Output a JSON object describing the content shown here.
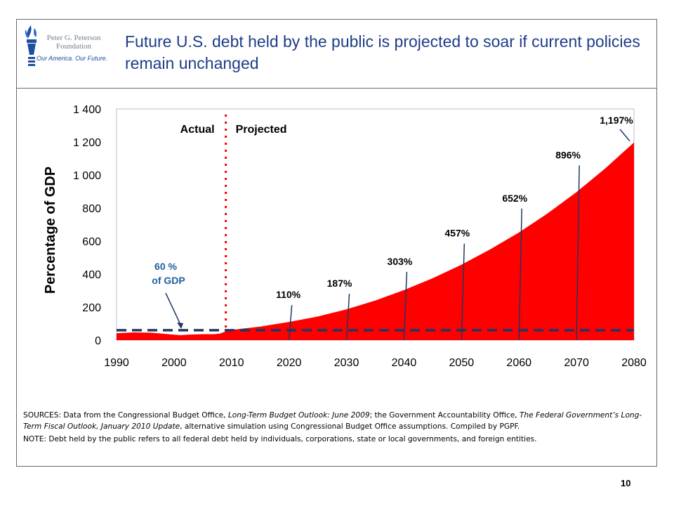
{
  "slide": {
    "title": "Future U.S. debt held by the public is projected to soar if current policies remain unchanged",
    "logo": {
      "name_line1": "Peter G. Peterson",
      "name_line2": "Foundation",
      "tagline": "Our America. Our Future."
    },
    "sources": {
      "line1_a": "SOURCES: Data from the Congressional Budget Office, ",
      "line1_b": "Long-Term Budget Outlook: June 2009",
      "line1_c": "; the Government Accountability Office, ",
      "line1_d": "The Federal Government’s Long-Term Fiscal Outlook, January 2010 Update",
      "line1_e": ", alternative simulation using Congressional Budget Office assumptions. Compiled by PGPF.",
      "note": "NOTE: Debt held by the public refers to all federal debt held by individuals, corporations, state or local governments, and foreign entities."
    },
    "page_number": "10"
  },
  "chart_data": {
    "type": "area",
    "ylabel": "Percentage of GDP",
    "xlim": [
      1990,
      2080
    ],
    "ylim": [
      0,
      1400
    ],
    "x_ticks": [
      "1990",
      "2000",
      "2010",
      "2020",
      "2030",
      "2040",
      "2050",
      "2060",
      "2070",
      "2080"
    ],
    "y_ticks": [
      "0",
      "200",
      "400",
      "600",
      "800",
      "1 000",
      "1 200",
      "1 400"
    ],
    "series": [
      {
        "x": [
          1990,
          1993,
          1996,
          1998,
          2000,
          2001,
          2003,
          2005,
          2007,
          2008,
          2009,
          2010,
          2015,
          2020,
          2025,
          2030,
          2035,
          2040,
          2045,
          2050,
          2055,
          2060,
          2065,
          2070,
          2075,
          2080
        ],
        "y": [
          42,
          47,
          45,
          39,
          33,
          30,
          34,
          36,
          36,
          40,
          53,
          62,
          82,
          110,
          143,
          187,
          240,
          303,
          375,
          457,
          550,
          652,
          768,
          896,
          1040,
          1197
        ],
        "color": "#ff0000"
      }
    ],
    "reference_line": {
      "value": 60,
      "color": "#1f3864",
      "style": "dashed"
    },
    "divider": {
      "x": 2009,
      "color": "#ff0000",
      "left_label": "Actual",
      "right_label": "Projected"
    },
    "annotations": [
      {
        "text": "110%",
        "x": 2020,
        "y": 110
      },
      {
        "text": "187%",
        "x": 2030,
        "y": 187
      },
      {
        "text": "303%",
        "x": 2040,
        "y": 303
      },
      {
        "text": "457%",
        "x": 2050,
        "y": 457
      },
      {
        "text": "652%",
        "x": 2060,
        "y": 652
      },
      {
        "text": "896%",
        "x": 2070,
        "y": 896
      },
      {
        "text": "1,197%",
        "x": 2080,
        "y": 1197
      }
    ],
    "ref_annotation": {
      "line1": "60 %",
      "line2": "of GDP",
      "x": 2001,
      "y": 60,
      "color": "#1f5f9f"
    },
    "grid": false,
    "legend": "none"
  }
}
